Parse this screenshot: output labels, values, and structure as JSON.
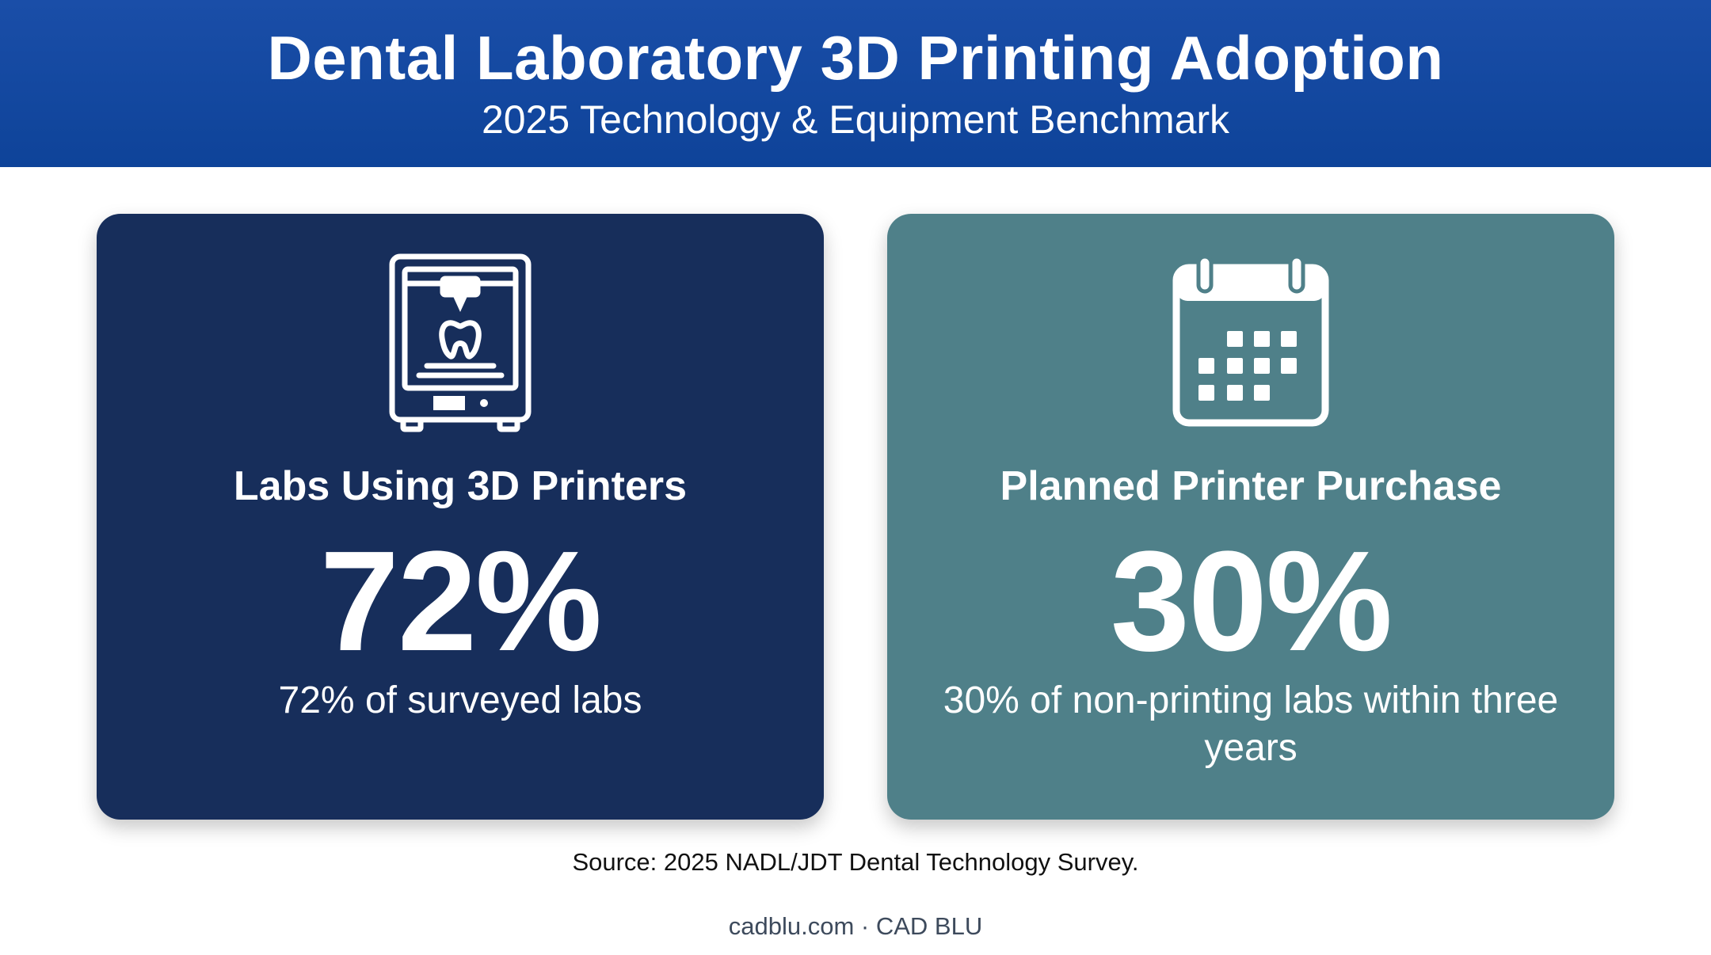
{
  "header": {
    "title": "Dental Laboratory 3D Printing Adoption",
    "subtitle": "2025 Technology & Equipment Benchmark"
  },
  "cards": [
    {
      "icon": "3d-printer-tooth-icon",
      "label": "Labs Using 3D Printers",
      "value": "72%",
      "description": "72% of surveyed labs",
      "color": "#172e5b"
    },
    {
      "icon": "calendar-icon",
      "label": "Planned Printer Purchase",
      "value": "30%",
      "description": "30% of non-printing labs within three years",
      "color": "#4f8089"
    }
  ],
  "source": "Source: 2025 NADL/JDT Dental Technology Survey.",
  "footer": "cadblu.com · CAD BLU",
  "colors": {
    "header": "#1a4ea8",
    "text": "#ffffff"
  }
}
